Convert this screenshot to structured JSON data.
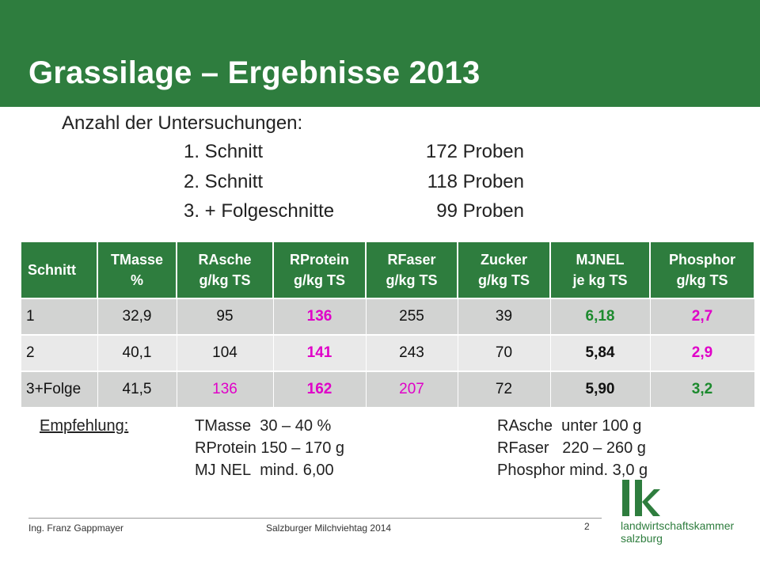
{
  "slide": {
    "title": "Grassilage – Ergebnisse 2013",
    "counts_title": "Anzahl der Untersuchungen:",
    "counts": [
      {
        "label": "1. Schnitt",
        "value": "172 Proben"
      },
      {
        "label": "2. Schnitt",
        "value": "118 Proben"
      },
      {
        "label": "3. + Folgeschnitte",
        "value": "99 Proben"
      }
    ]
  },
  "table": {
    "headers": [
      [
        "Schnitt",
        ""
      ],
      [
        "TMasse",
        "%"
      ],
      [
        "RAsche",
        "g/kg TS"
      ],
      [
        "RProtein",
        "g/kg TS"
      ],
      [
        "RFaser",
        "g/kg TS"
      ],
      [
        "Zucker",
        "g/kg TS"
      ],
      [
        "MJNEL",
        "je kg TS"
      ],
      [
        "Phosphor",
        "g/kg TS"
      ]
    ],
    "rows": [
      [
        "1",
        "32,9",
        "95",
        "136",
        "255",
        "39",
        "6,18",
        "2,7"
      ],
      [
        "2",
        "40,1",
        "104",
        "141",
        "243",
        "70",
        "5,84",
        "2,9"
      ],
      [
        "3+Folge",
        "41,5",
        "136",
        "162",
        "207",
        "72",
        "5,90",
        "3,2"
      ]
    ],
    "colors": {
      "header_bg": "#2e7d3e",
      "highlight_magenta": "#e000c8",
      "highlight_green": "#1c8a2e"
    }
  },
  "recommendation": {
    "label": "Empfehlung:",
    "left": [
      {
        "name": "TMasse",
        "value": "30 – 40 %"
      },
      {
        "name": "RProtein",
        "value": "150 – 170 g"
      },
      {
        "name": "MJ NEL",
        "value": "mind. 6,00"
      }
    ],
    "right": [
      {
        "name": "RAsche",
        "value": "unter 100 g"
      },
      {
        "name": "RFaser",
        "value": "220 – 260 g"
      },
      {
        "name": "Phosphor",
        "value": "mind. 3,0 g"
      }
    ]
  },
  "footer": {
    "author": "Ing. Franz Gappmayer",
    "event": "Salzburger Milchviehtag 2014",
    "page": "2"
  },
  "logo": {
    "mark": "lk",
    "line1": "landwirtschaftskammer",
    "line2": "salzburg"
  }
}
